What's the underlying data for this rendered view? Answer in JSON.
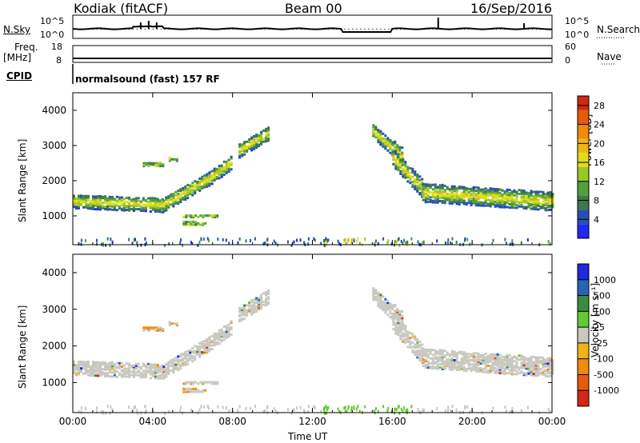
{
  "header": {
    "station": "Kodiak (fitACF)",
    "beam": "Beam 00",
    "date": "16/Sep/2016"
  },
  "panels": {
    "nsky_label": "N.Sky",
    "nsearch_label": "N.Search",
    "freq_label": "Freq.",
    "freq_unit": "[MHz]",
    "nave_label": "Nave",
    "cpid_label": "CPID",
    "cpid_value": "normalsound (fast) 157 RF",
    "noise_ticks_left": [
      "10^5",
      "10^0"
    ],
    "noise_ticks_right": [
      "10^5",
      "10^0"
    ],
    "freq_ticks": [
      "18",
      "8"
    ],
    "nave_ticks": [
      "60",
      "0"
    ]
  },
  "colors": {
    "background": "#ffffff",
    "trace": "#000000",
    "ground_scatter": "#c8c8c0"
  },
  "chart_data": [
    {
      "type": "heatmap",
      "title": "",
      "xlabel": "Time UT",
      "ylabel": "Slant Range [km]",
      "xlim": [
        "00:00",
        "24:00"
      ],
      "ylim": [
        180,
        4500
      ],
      "x_ticks": [
        "00:00",
        "04:00",
        "08:00",
        "12:00",
        "16:00",
        "20:00",
        "00:00"
      ],
      "y_ticks": [
        1000,
        2000,
        3000,
        4000
      ],
      "colorbar": {
        "label": "Power [dB]",
        "ticks": [
          4,
          8,
          12,
          16,
          20,
          24,
          28
        ],
        "range": [
          0,
          30
        ],
        "colors": [
          "#1e28ff",
          "#2850b4",
          "#3c7850",
          "#50a03c",
          "#96c828",
          "#e6dc14",
          "#f0b414",
          "#f08c0a",
          "#e65a0a",
          "#d22814"
        ]
      },
      "echo_bands": [
        {
          "t_start": 0.0,
          "t_end": 4.5,
          "r_start": 1450,
          "r_end": 1350
        },
        {
          "t_start": 4.5,
          "t_end": 6.8,
          "r_start": 1350,
          "r_end": 2100
        },
        {
          "t_start": 6.8,
          "t_end": 8.0,
          "r_start": 2100,
          "r_end": 2600
        },
        {
          "t_start": 8.3,
          "t_end": 9.8,
          "r_start": 2900,
          "r_end": 3400
        },
        {
          "t_start": 15.0,
          "t_end": 16.5,
          "r_start": 3450,
          "r_end": 2700
        },
        {
          "t_start": 16.0,
          "t_end": 17.5,
          "r_start": 2700,
          "r_end": 1800
        },
        {
          "t_start": 17.5,
          "t_end": 24.0,
          "r_start": 1700,
          "r_end": 1450
        }
      ]
    },
    {
      "type": "heatmap",
      "title": "",
      "xlabel": "Time UT",
      "ylabel": "Slant Range [km]",
      "xlim": [
        "00:00",
        "24:00"
      ],
      "ylim": [
        180,
        4500
      ],
      "x_ticks": [
        "00:00",
        "04:00",
        "08:00",
        "12:00",
        "16:00",
        "20:00",
        "00:00"
      ],
      "y_ticks": [
        1000,
        2000,
        3000,
        4000
      ],
      "colorbar": {
        "label": "Velocity [m s⁻¹]",
        "ticks": [
          "1000",
          "500",
          "100",
          "25",
          "-25",
          "-100",
          "-500",
          "-1000"
        ],
        "colors": [
          "#1e28dc",
          "#2864b4",
          "#3c8c3c",
          "#64c832",
          "#c8c8c0",
          "#f0b414",
          "#f08c0a",
          "#e65a0a",
          "#d22814"
        ]
      },
      "ground_scatter_dominant": true
    }
  ]
}
